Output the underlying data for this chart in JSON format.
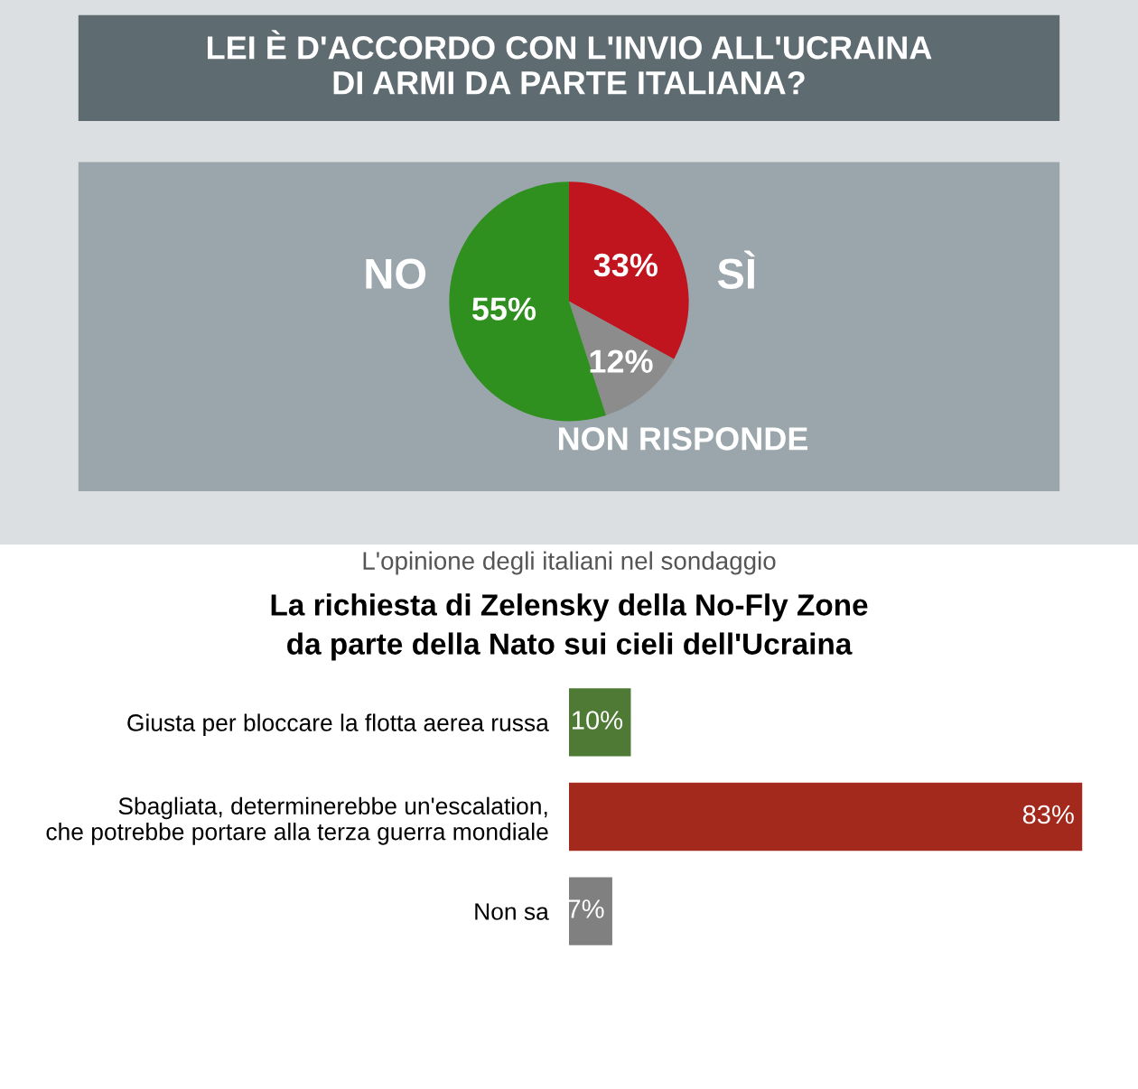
{
  "chart_data": [
    {
      "type": "pie",
      "title": "LEI È D'ACCORDO CON L'INVIO ALL'UCRAINA\nDI ARMI DA PARTE ITALIANA?",
      "categories": [
        "SÌ",
        "NON RISPONDE",
        "NO"
      ],
      "values": [
        33,
        12,
        55
      ],
      "colors": [
        "#c0141e",
        "#8c8c8c",
        "#2f8f1f"
      ],
      "value_labels": [
        "33%",
        "12%",
        "55%"
      ]
    },
    {
      "type": "bar",
      "orientation": "horizontal",
      "title": "La richiesta di Zelensky della No-Fly Zone\nda parte della Nato sui cieli dell'Ucraina",
      "annotations": [
        "L'opinione degli italiani nel sondaggio"
      ],
      "categories": [
        "Giusta per bloccare la flotta aerea russa",
        "Sbagliata, determinerebbe un'escalation,\nche potrebbe portare alla terza guerra mondiale",
        "Non sa"
      ],
      "values": [
        10,
        83,
        7
      ],
      "colors": [
        "#4e7a35",
        "#a3291d",
        "#808080"
      ],
      "value_labels": [
        "10%",
        "83%",
        "7%"
      ]
    }
  ]
}
